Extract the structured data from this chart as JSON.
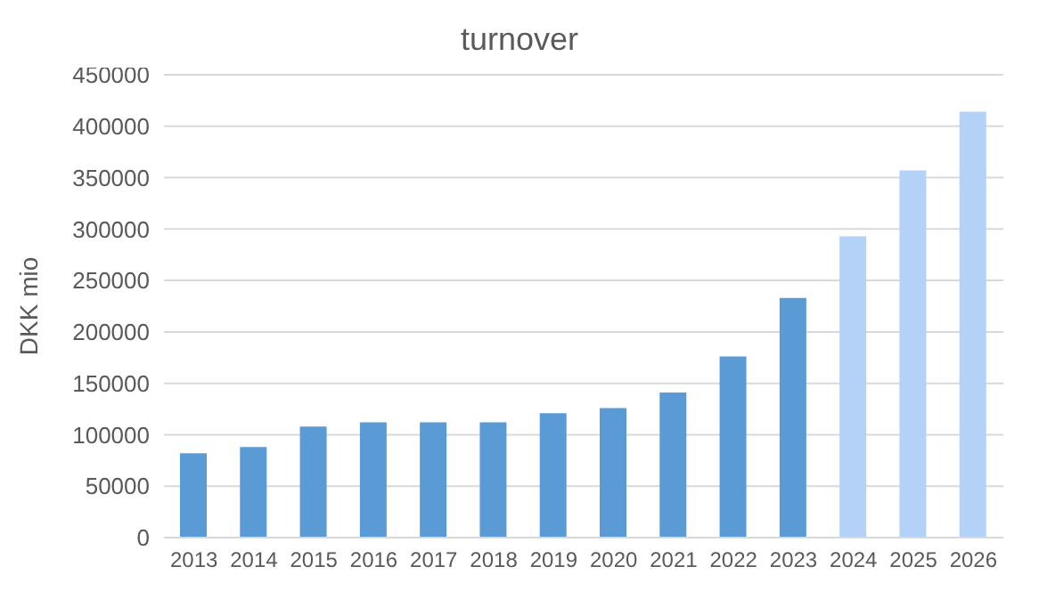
{
  "chart_data": {
    "type": "bar",
    "title": "turnover",
    "ylabel": "DKK mio",
    "categories": [
      "2013",
      "2014",
      "2015",
      "2016",
      "2017",
      "2018",
      "2019",
      "2020",
      "2021",
      "2022",
      "2023",
      "2024",
      "2025",
      "2026"
    ],
    "values": [
      82000,
      88000,
      108000,
      112000,
      112000,
      112000,
      121000,
      126000,
      141000,
      176000,
      233000,
      293000,
      357000,
      414000
    ],
    "colors": [
      "#5b9bd5",
      "#5b9bd5",
      "#5b9bd5",
      "#5b9bd5",
      "#5b9bd5",
      "#5b9bd5",
      "#5b9bd5",
      "#5b9bd5",
      "#5b9bd5",
      "#5b9bd5",
      "#5b9bd5",
      "#b4d2f7",
      "#b4d2f7",
      "#b4d2f7"
    ],
    "ylim": [
      0,
      450000
    ],
    "yticks": [
      0,
      50000,
      100000,
      150000,
      200000,
      250000,
      300000,
      350000,
      400000,
      450000
    ],
    "grid": "y"
  }
}
